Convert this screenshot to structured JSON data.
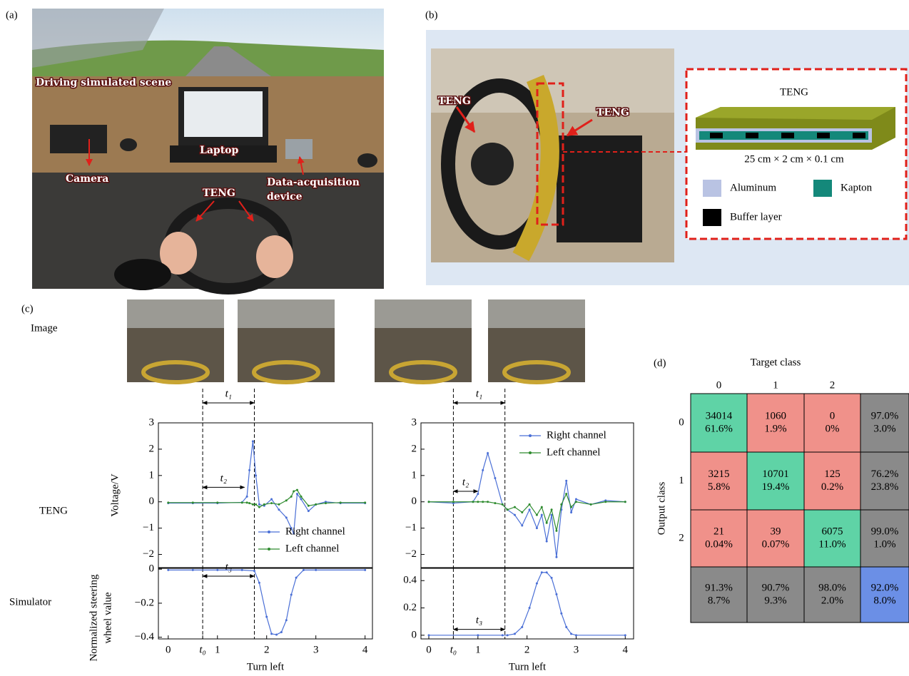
{
  "panels": {
    "a": "(a)",
    "b": "(b)",
    "c": "(c)",
    "d": "(d)"
  },
  "photo_a": {
    "scene": "Driving simulated scene",
    "laptop": "Laptop",
    "camera": "Camera",
    "daq": [
      "Data-acquisition",
      "device"
    ],
    "teng": "TENG"
  },
  "photo_b": {
    "teng_left": "TENG",
    "teng_right": "TENG",
    "inset_title": "TENG",
    "dimensions": "25 cm × 2 cm × 0.1 cm",
    "legend": [
      {
        "name": "Aluminum",
        "color": "#b9c3e3"
      },
      {
        "name": "Kapton",
        "color": "#14887a"
      },
      {
        "name": "Buffer layer",
        "color": "#000000"
      }
    ]
  },
  "row_labels": {
    "image": "Image",
    "teng": "TENG",
    "simulator": "Simulator"
  },
  "chart_data": [
    {
      "type": "line",
      "ylabel": "Voltage/V",
      "xlim": [
        -0.2,
        4.15
      ],
      "ylim": [
        -2.5,
        3
      ],
      "yticks": [
        {
          "value": -2,
          "label": "−2"
        },
        {
          "value": -1,
          "label": "−1"
        },
        0,
        1,
        2,
        3
      ],
      "x": [
        0,
        0.5,
        1,
        1.5,
        1.6,
        1.65,
        1.72,
        1.78,
        1.85,
        1.95,
        2.1,
        2.25,
        2.4,
        2.5,
        2.55,
        2.62,
        2.7,
        2.85,
        3.0,
        3.2,
        3.5,
        4.0
      ],
      "series": [
        {
          "name": "Right channel",
          "color": "#4a6fd6",
          "values": [
            -0.05,
            -0.05,
            -0.05,
            -0.02,
            0.2,
            1.2,
            2.3,
            1.0,
            -0.1,
            -0.15,
            0.1,
            -0.3,
            -0.6,
            -1.0,
            -1.2,
            0.3,
            0.1,
            -0.35,
            -0.1,
            0.0,
            -0.05,
            -0.05
          ]
        },
        {
          "name": "Left channel",
          "color": "#2e8b2e",
          "values": [
            -0.03,
            -0.03,
            -0.03,
            -0.03,
            -0.03,
            -0.05,
            -0.1,
            -0.1,
            -0.2,
            -0.1,
            -0.05,
            -0.1,
            0.05,
            0.2,
            0.4,
            0.45,
            0.2,
            -0.15,
            -0.1,
            -0.05,
            -0.03,
            -0.03
          ]
        }
      ],
      "legend": "lower right",
      "vlines": [
        0.7,
        1.75
      ],
      "spans": [
        {
          "label": "t₁",
          "from": 0.7,
          "to": 1.75,
          "y": 3.76
        },
        {
          "label": "t₂",
          "from": 0.7,
          "to": 1.55,
          "y": 0.55
        }
      ]
    },
    {
      "type": "line",
      "ylabel": [
        "Normalized steering",
        "wheel value"
      ],
      "xlabel": "Turn left",
      "xlim": [
        -0.2,
        4.15
      ],
      "ylim": [
        -0.41,
        0.005
      ],
      "yticks": [
        {
          "value": -0.4,
          "label": "−0.4"
        },
        {
          "value": -0.2,
          "label": "−0.2"
        },
        0
      ],
      "xticks": [
        0,
        {
          "value": 0.7,
          "label": "t₀"
        },
        1,
        2,
        3,
        4
      ],
      "x": [
        0,
        0.5,
        1,
        1.5,
        1.75,
        1.85,
        2.0,
        2.1,
        2.2,
        2.3,
        2.4,
        2.5,
        2.6,
        2.75,
        3.0,
        4.0
      ],
      "values": [
        -0.005,
        -0.005,
        -0.005,
        -0.005,
        -0.01,
        -0.08,
        -0.28,
        -0.38,
        -0.385,
        -0.37,
        -0.3,
        -0.15,
        -0.05,
        -0.005,
        -0.005,
        -0.005
      ],
      "color": "#4a6fd6",
      "vlines": [
        0.7,
        1.75
      ],
      "spans": [
        {
          "label": "t₃",
          "from": 0.7,
          "to": 1.75,
          "y": -0.041
        }
      ]
    },
    {
      "type": "line",
      "xlim": [
        -0.16,
        4.17
      ],
      "ylim": [
        -2.5,
        3
      ],
      "yticks": [
        {
          "value": -2,
          "label": "−2"
        },
        {
          "value": -1,
          "label": "−1"
        },
        0,
        1,
        2,
        3
      ],
      "x": [
        0,
        0.5,
        0.9,
        1.0,
        1.1,
        1.2,
        1.35,
        1.5,
        1.6,
        1.75,
        1.9,
        2.05,
        2.2,
        2.3,
        2.4,
        2.5,
        2.6,
        2.7,
        2.8,
        2.9,
        3.0,
        3.3,
        3.6,
        4.0
      ],
      "series": [
        {
          "name": "Right channel",
          "color": "#4a6fd6",
          "values": [
            0,
            -0.05,
            0,
            0.3,
            1.2,
            1.85,
            0.9,
            -0.1,
            -0.3,
            -0.5,
            -0.9,
            -0.3,
            -1.0,
            -0.5,
            -1.5,
            -0.5,
            -2.1,
            -0.3,
            0.8,
            -0.4,
            0.1,
            -0.1,
            0.05,
            0
          ]
        },
        {
          "name": "Left channel",
          "color": "#2e8b2e",
          "values": [
            0,
            0,
            0,
            0,
            0,
            0,
            -0.05,
            -0.1,
            -0.3,
            -0.2,
            -0.4,
            -0.1,
            -0.5,
            -0.2,
            -0.8,
            -0.3,
            -1.1,
            -0.1,
            0.3,
            -0.2,
            0.0,
            -0.1,
            0,
            0
          ]
        }
      ],
      "legend": "upper right",
      "vlines": [
        0.5,
        1.55
      ],
      "spans": [
        {
          "label": "t₁",
          "from": 0.5,
          "to": 1.55,
          "y": 3.76
        },
        {
          "label": "t₂",
          "from": 0.5,
          "to": 1.0,
          "y": 0.4
        }
      ]
    },
    {
      "type": "line",
      "xlabel": "Turn left",
      "xlim": [
        -0.16,
        4.17
      ],
      "ylim": [
        -0.027,
        0.49
      ],
      "yticks": [
        0,
        0.2,
        0.4
      ],
      "xticks": [
        0,
        {
          "value": 0.5,
          "label": "t₀"
        },
        1,
        2,
        3,
        4
      ],
      "x": [
        0,
        1,
        1.5,
        1.6,
        1.75,
        1.9,
        2.05,
        2.2,
        2.3,
        2.4,
        2.5,
        2.6,
        2.7,
        2.8,
        2.9,
        3.0,
        4.0
      ],
      "values": [
        0,
        0,
        0,
        0,
        0.01,
        0.06,
        0.2,
        0.38,
        0.46,
        0.46,
        0.42,
        0.3,
        0.16,
        0.06,
        0.01,
        0,
        0
      ],
      "color": "#4a6fd6",
      "vlines": [
        0.5,
        1.55
      ],
      "spans": [
        {
          "label": "t₃",
          "from": 0.5,
          "to": 1.55,
          "y": 0.043
        }
      ]
    }
  ],
  "confusion_matrix": {
    "title": "Target class",
    "ylabel": "Output class",
    "columns": [
      "0",
      "1",
      "2"
    ],
    "rows": [
      "0",
      "1",
      "2"
    ],
    "colors": {
      "correct": "#5fd3a6",
      "wrong": "#f0918a",
      "summary": "#8a8a8a",
      "total": "#6b8fe6",
      "good_text": "#1e6b1e",
      "bad_text": "#b8201f"
    },
    "cells": [
      [
        [
          "34014",
          "61.6%"
        ],
        [
          "1060",
          "1.9%"
        ],
        [
          "0",
          "0%"
        ],
        [
          "97.0%",
          "3.0%"
        ]
      ],
      [
        [
          "3215",
          "5.8%"
        ],
        [
          "10701",
          "19.4%"
        ],
        [
          "125",
          "0.2%"
        ],
        [
          "76.2%",
          "23.8%"
        ]
      ],
      [
        [
          "21",
          "0.04%"
        ],
        [
          "39",
          "0.07%"
        ],
        [
          "6075",
          "11.0%"
        ],
        [
          "99.0%",
          "1.0%"
        ]
      ],
      [
        [
          "91.3%",
          "8.7%"
        ],
        [
          "90.7%",
          "9.3%"
        ],
        [
          "98.0%",
          "2.0%"
        ],
        [
          "92.0%",
          "8.0%"
        ]
      ]
    ]
  }
}
